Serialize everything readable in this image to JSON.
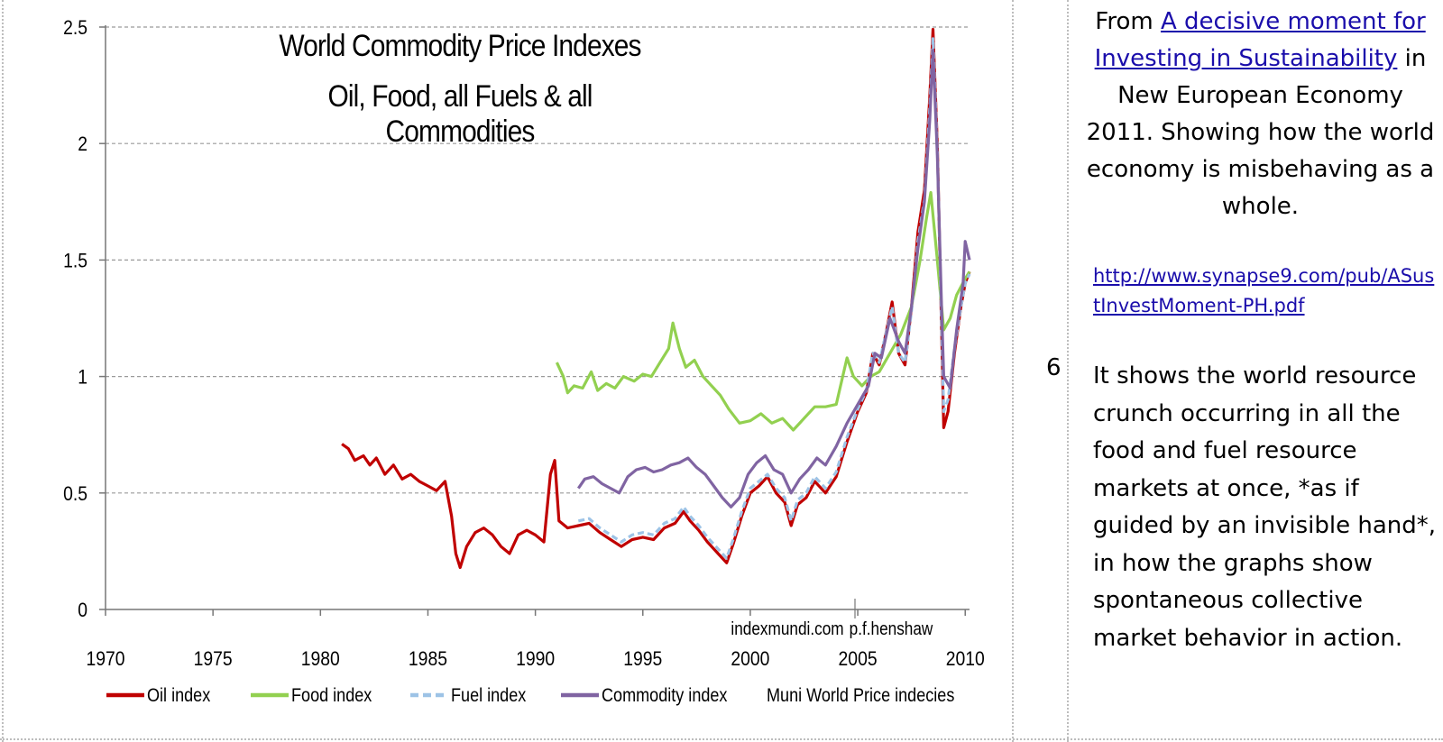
{
  "sidebar": {
    "intro_from": "From ",
    "link_text": "A decisive moment for Investing in Sustainability",
    "intro_rest": " in New European Economy 2011. Showing how the world economy is misbehaving as a whole.",
    "url_text": "http://www.synapse9.com/pub/ASustInvestMoment-PH.pdf",
    "slide_number": "6",
    "body_text": "It shows the world resource crunch occurring in all the food and fuel resource markets at once, *as if guided by an invisible hand*, in how the graphs show spontaneous collective market behavior in action."
  },
  "chart_data": {
    "type": "line",
    "title_line1": "World Commodity Price Indexes",
    "title_line2": "Oil, Food, all Fuels & all Commodities",
    "xlim": [
      1970,
      2010.2
    ],
    "ylim": [
      0,
      2.5
    ],
    "x_ticks": [
      "1970",
      "1975",
      "1980",
      "1985",
      "1990",
      "1995",
      "2000",
      "2005",
      "2010"
    ],
    "y_ticks": [
      "0",
      "0.5",
      "1",
      "1.5",
      "2",
      "2.5"
    ],
    "grid": "horizontal dashed",
    "annotations": [
      "indexmundi.com",
      "p.f.henshaw"
    ],
    "legend_caption": "Muni World Price indecies",
    "legend_position": "bottom",
    "series": [
      {
        "name": "Oil index",
        "color": "#c00000",
        "dash": "solid",
        "points": [
          [
            1981.0,
            0.71
          ],
          [
            1981.3,
            0.69
          ],
          [
            1981.6,
            0.64
          ],
          [
            1982.0,
            0.66
          ],
          [
            1982.3,
            0.62
          ],
          [
            1982.6,
            0.65
          ],
          [
            1983.0,
            0.58
          ],
          [
            1983.4,
            0.62
          ],
          [
            1983.8,
            0.56
          ],
          [
            1984.2,
            0.58
          ],
          [
            1984.6,
            0.55
          ],
          [
            1985.0,
            0.53
          ],
          [
            1985.4,
            0.51
          ],
          [
            1985.8,
            0.55
          ],
          [
            1986.1,
            0.4
          ],
          [
            1986.3,
            0.24
          ],
          [
            1986.5,
            0.18
          ],
          [
            1986.8,
            0.27
          ],
          [
            1987.2,
            0.33
          ],
          [
            1987.6,
            0.35
          ],
          [
            1988.0,
            0.32
          ],
          [
            1988.4,
            0.27
          ],
          [
            1988.8,
            0.24
          ],
          [
            1989.2,
            0.32
          ],
          [
            1989.6,
            0.34
          ],
          [
            1990.0,
            0.32
          ],
          [
            1990.4,
            0.29
          ],
          [
            1990.7,
            0.58
          ],
          [
            1990.9,
            0.64
          ],
          [
            1991.1,
            0.38
          ],
          [
            1991.5,
            0.35
          ],
          [
            1992.0,
            0.36
          ],
          [
            1992.5,
            0.37
          ],
          [
            1993.0,
            0.33
          ],
          [
            1993.5,
            0.3
          ],
          [
            1994.0,
            0.27
          ],
          [
            1994.5,
            0.3
          ],
          [
            1995.0,
            0.31
          ],
          [
            1995.5,
            0.3
          ],
          [
            1996.0,
            0.35
          ],
          [
            1996.5,
            0.37
          ],
          [
            1996.9,
            0.42
          ],
          [
            1997.2,
            0.38
          ],
          [
            1997.6,
            0.34
          ],
          [
            1998.0,
            0.29
          ],
          [
            1998.5,
            0.24
          ],
          [
            1998.9,
            0.2
          ],
          [
            1999.2,
            0.28
          ],
          [
            1999.6,
            0.4
          ],
          [
            2000.0,
            0.5
          ],
          [
            2000.4,
            0.53
          ],
          [
            2000.8,
            0.57
          ],
          [
            2001.2,
            0.5
          ],
          [
            2001.6,
            0.46
          ],
          [
            2001.9,
            0.36
          ],
          [
            2002.2,
            0.45
          ],
          [
            2002.6,
            0.48
          ],
          [
            2003.0,
            0.55
          ],
          [
            2003.5,
            0.5
          ],
          [
            2004.0,
            0.57
          ],
          [
            2004.5,
            0.72
          ],
          [
            2005.0,
            0.85
          ],
          [
            2005.4,
            0.93
          ],
          [
            2005.7,
            1.1
          ],
          [
            2006.0,
            1.05
          ],
          [
            2006.3,
            1.18
          ],
          [
            2006.6,
            1.32
          ],
          [
            2006.9,
            1.1
          ],
          [
            2007.2,
            1.05
          ],
          [
            2007.5,
            1.3
          ],
          [
            2007.8,
            1.62
          ],
          [
            2008.1,
            1.8
          ],
          [
            2008.35,
            2.2
          ],
          [
            2008.5,
            2.49
          ],
          [
            2008.7,
            2.0
          ],
          [
            2008.9,
            1.2
          ],
          [
            2009.0,
            0.78
          ],
          [
            2009.2,
            0.85
          ],
          [
            2009.5,
            1.1
          ],
          [
            2009.8,
            1.3
          ],
          [
            2010.0,
            1.4
          ],
          [
            2010.2,
            1.45
          ]
        ]
      },
      {
        "name": "Food index",
        "color": "#92d050",
        "dash": "solid",
        "points": [
          [
            1991.0,
            1.06
          ],
          [
            1991.3,
            1.0
          ],
          [
            1991.5,
            0.93
          ],
          [
            1991.8,
            0.96
          ],
          [
            1992.2,
            0.95
          ],
          [
            1992.6,
            1.02
          ],
          [
            1992.9,
            0.94
          ],
          [
            1993.3,
            0.97
          ],
          [
            1993.7,
            0.95
          ],
          [
            1994.1,
            1.0
          ],
          [
            1994.6,
            0.98
          ],
          [
            1995.0,
            1.01
          ],
          [
            1995.4,
            1.0
          ],
          [
            1995.8,
            1.06
          ],
          [
            1996.2,
            1.12
          ],
          [
            1996.4,
            1.23
          ],
          [
            1996.7,
            1.12
          ],
          [
            1997.0,
            1.04
          ],
          [
            1997.4,
            1.07
          ],
          [
            1997.8,
            1.0
          ],
          [
            1998.2,
            0.96
          ],
          [
            1998.6,
            0.92
          ],
          [
            1999.0,
            0.86
          ],
          [
            1999.5,
            0.8
          ],
          [
            2000.0,
            0.81
          ],
          [
            2000.5,
            0.84
          ],
          [
            2001.0,
            0.8
          ],
          [
            2001.5,
            0.82
          ],
          [
            2002.0,
            0.77
          ],
          [
            2002.5,
            0.82
          ],
          [
            2003.0,
            0.87
          ],
          [
            2003.5,
            0.87
          ],
          [
            2004.0,
            0.88
          ],
          [
            2004.5,
            1.08
          ],
          [
            2004.8,
            1.0
          ],
          [
            2005.2,
            0.96
          ],
          [
            2005.6,
            1.0
          ],
          [
            2006.0,
            1.02
          ],
          [
            2006.5,
            1.1
          ],
          [
            2007.0,
            1.18
          ],
          [
            2007.5,
            1.3
          ],
          [
            2007.9,
            1.5
          ],
          [
            2008.2,
            1.68
          ],
          [
            2008.4,
            1.79
          ],
          [
            2008.7,
            1.5
          ],
          [
            2009.0,
            1.2
          ],
          [
            2009.3,
            1.25
          ],
          [
            2009.6,
            1.35
          ],
          [
            2010.0,
            1.42
          ],
          [
            2010.2,
            1.45
          ]
        ]
      },
      {
        "name": "Fuel index",
        "color": "#9dc3e6",
        "dash": "dashed",
        "points": [
          [
            1992.0,
            0.38
          ],
          [
            1992.5,
            0.39
          ],
          [
            1993.0,
            0.35
          ],
          [
            1993.5,
            0.32
          ],
          [
            1994.0,
            0.29
          ],
          [
            1994.5,
            0.32
          ],
          [
            1995.0,
            0.33
          ],
          [
            1995.5,
            0.32
          ],
          [
            1996.0,
            0.37
          ],
          [
            1996.5,
            0.39
          ],
          [
            1996.9,
            0.44
          ],
          [
            1997.2,
            0.4
          ],
          [
            1997.6,
            0.36
          ],
          [
            1998.0,
            0.31
          ],
          [
            1998.5,
            0.26
          ],
          [
            1998.9,
            0.22
          ],
          [
            1999.2,
            0.3
          ],
          [
            1999.6,
            0.42
          ],
          [
            2000.0,
            0.52
          ],
          [
            2000.4,
            0.55
          ],
          [
            2000.8,
            0.58
          ],
          [
            2001.2,
            0.52
          ],
          [
            2001.6,
            0.48
          ],
          [
            2001.9,
            0.38
          ],
          [
            2002.2,
            0.47
          ],
          [
            2002.6,
            0.5
          ],
          [
            2003.0,
            0.57
          ],
          [
            2003.5,
            0.52
          ],
          [
            2004.0,
            0.59
          ],
          [
            2004.5,
            0.74
          ],
          [
            2005.0,
            0.86
          ],
          [
            2005.4,
            0.94
          ],
          [
            2005.7,
            1.1
          ],
          [
            2006.0,
            1.06
          ],
          [
            2006.3,
            1.18
          ],
          [
            2006.6,
            1.3
          ],
          [
            2006.9,
            1.1
          ],
          [
            2007.2,
            1.06
          ],
          [
            2007.5,
            1.28
          ],
          [
            2007.8,
            1.58
          ],
          [
            2008.1,
            1.76
          ],
          [
            2008.35,
            2.15
          ],
          [
            2008.5,
            2.45
          ],
          [
            2008.7,
            1.98
          ],
          [
            2008.9,
            1.22
          ],
          [
            2009.0,
            0.85
          ],
          [
            2009.2,
            0.9
          ],
          [
            2009.5,
            1.12
          ],
          [
            2009.8,
            1.3
          ],
          [
            2010.0,
            1.4
          ],
          [
            2010.2,
            1.44
          ]
        ]
      },
      {
        "name": "Commodity index",
        "color": "#8064a2",
        "dash": "solid",
        "points": [
          [
            1992.0,
            0.52
          ],
          [
            1992.3,
            0.56
          ],
          [
            1992.7,
            0.57
          ],
          [
            1993.1,
            0.54
          ],
          [
            1993.5,
            0.52
          ],
          [
            1993.9,
            0.5
          ],
          [
            1994.3,
            0.57
          ],
          [
            1994.7,
            0.6
          ],
          [
            1995.1,
            0.61
          ],
          [
            1995.5,
            0.59
          ],
          [
            1995.9,
            0.6
          ],
          [
            1996.3,
            0.62
          ],
          [
            1996.7,
            0.63
          ],
          [
            1997.1,
            0.65
          ],
          [
            1997.5,
            0.61
          ],
          [
            1997.9,
            0.58
          ],
          [
            1998.3,
            0.53
          ],
          [
            1998.7,
            0.48
          ],
          [
            1999.1,
            0.44
          ],
          [
            1999.5,
            0.48
          ],
          [
            1999.9,
            0.58
          ],
          [
            2000.3,
            0.63
          ],
          [
            2000.7,
            0.66
          ],
          [
            2001.1,
            0.6
          ],
          [
            2001.5,
            0.58
          ],
          [
            2001.9,
            0.5
          ],
          [
            2002.3,
            0.56
          ],
          [
            2002.7,
            0.6
          ],
          [
            2003.1,
            0.65
          ],
          [
            2003.5,
            0.62
          ],
          [
            2004.0,
            0.7
          ],
          [
            2004.5,
            0.8
          ],
          [
            2005.0,
            0.88
          ],
          [
            2005.5,
            0.96
          ],
          [
            2005.8,
            1.1
          ],
          [
            2006.1,
            1.08
          ],
          [
            2006.5,
            1.25
          ],
          [
            2006.9,
            1.15
          ],
          [
            2007.2,
            1.1
          ],
          [
            2007.5,
            1.3
          ],
          [
            2007.8,
            1.55
          ],
          [
            2008.1,
            1.75
          ],
          [
            2008.35,
            2.1
          ],
          [
            2008.5,
            2.4
          ],
          [
            2008.7,
            1.95
          ],
          [
            2008.9,
            1.3
          ],
          [
            2009.0,
            1.0
          ],
          [
            2009.3,
            0.95
          ],
          [
            2009.6,
            1.2
          ],
          [
            2009.9,
            1.4
          ],
          [
            2010.0,
            1.58
          ],
          [
            2010.2,
            1.5
          ]
        ]
      }
    ]
  }
}
